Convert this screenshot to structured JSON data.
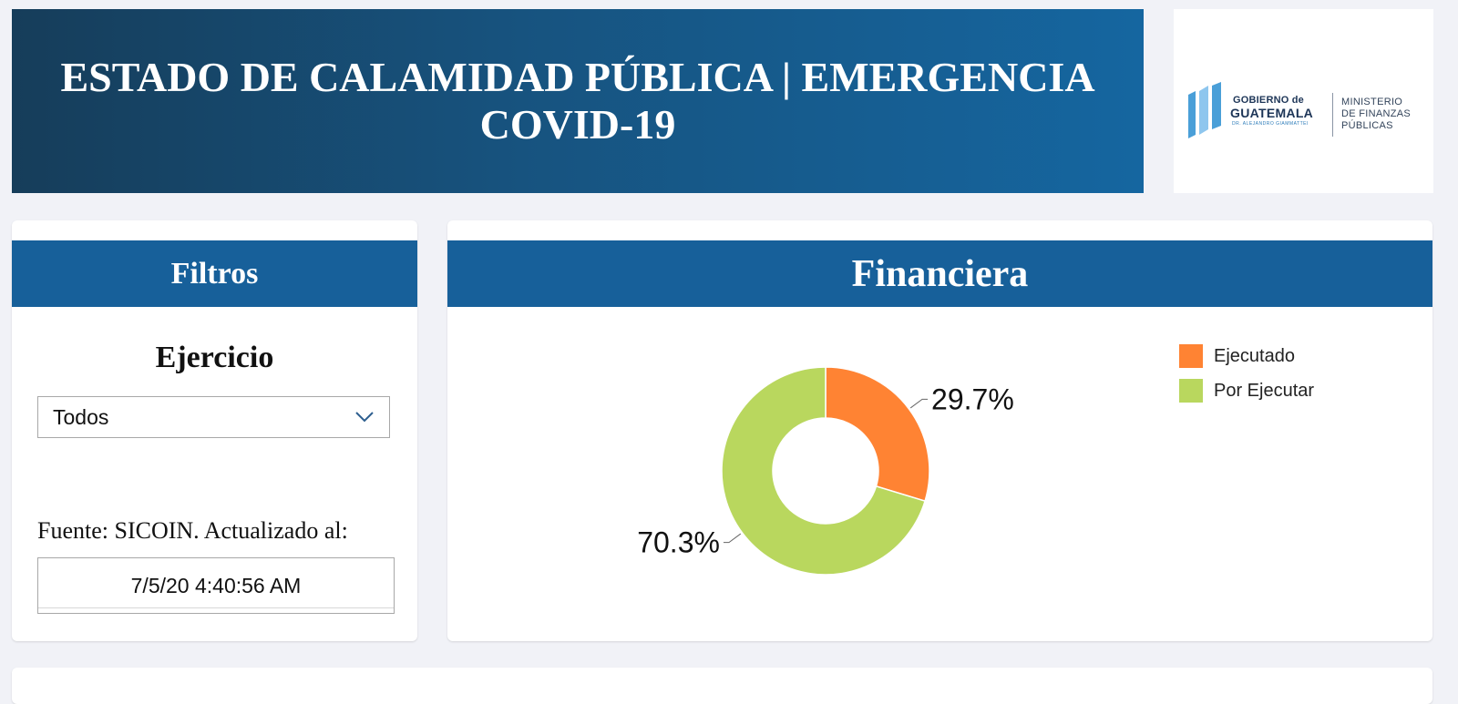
{
  "banner": {
    "title_line1": "ESTADO DE CALAMIDAD PÚBLICA | EMERGENCIA",
    "title_line2": "COVID-19"
  },
  "logo": {
    "gobierno": "GOBIERNO de",
    "guatemala": "GUATEMALA",
    "subtitle": "DR. ALEJANDRO GIAMMATTEI",
    "ministerio_line1": "MINISTERIO",
    "ministerio_line2": "DE FINANZAS",
    "ministerio_line3": "PÚBLICAS"
  },
  "filters": {
    "header": "Filtros",
    "ejercicio_label": "Ejercicio",
    "ejercicio_value": "Todos",
    "fuente_text": "Fuente: SICOIN. Actualizado al:",
    "updated_value": "7/5/20 4:40:56 AM"
  },
  "financiera": {
    "header": "Financiera"
  },
  "colors": {
    "ejecutado": "#ff8333",
    "por_ejecutar": "#b9d75e",
    "header_blue": "#17609a"
  },
  "chart_data": {
    "type": "pie",
    "donut": true,
    "categories": [
      "Ejecutado",
      "Por Ejecutar"
    ],
    "values": [
      29.7,
      70.3
    ],
    "data_labels": [
      "29.7%",
      "70.3%"
    ],
    "legend": "top-right"
  }
}
